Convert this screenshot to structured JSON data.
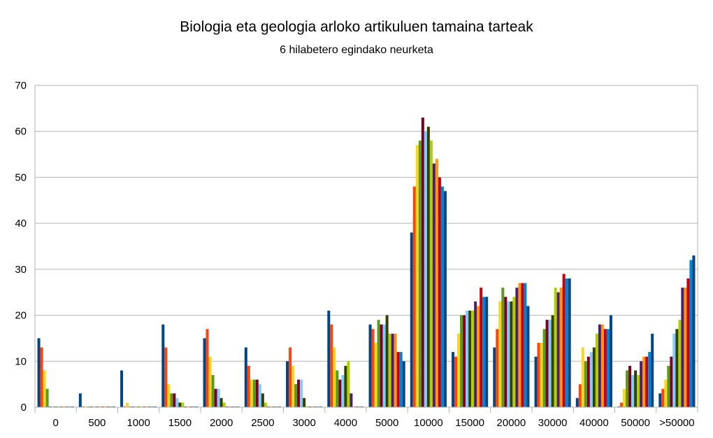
{
  "chart_data": {
    "type": "bar",
    "title": "Biologia eta geologia arloko artikuluen tamaina tarteak",
    "subtitle": "6 hilabetero egindako neurketa",
    "xlabel": "",
    "ylabel": "",
    "ylim": [
      0,
      70
    ],
    "yticks": [
      "0",
      "10",
      "20",
      "30",
      "40",
      "50",
      "60",
      "70"
    ],
    "grid": true,
    "legend": "none",
    "categories": [
      "0",
      "500",
      "1000",
      "1500",
      "2000",
      "2500",
      "3000",
      "4000",
      "5000",
      "10000",
      "15000",
      "20000",
      "30000",
      "40000",
      "50000",
      ">50000"
    ],
    "colors": [
      "#004586",
      "#ff420e",
      "#ffd320",
      "#579d1c",
      "#7e0021",
      "#83caff",
      "#314004",
      "#aecf00",
      "#4b1f6f",
      "#ff950e",
      "#c5000b",
      "#0084d1",
      "#004586"
    ],
    "values_by_category": [
      [
        15,
        13,
        8,
        4,
        0,
        0,
        0,
        0,
        0,
        0,
        0,
        0,
        0
      ],
      [
        3,
        0,
        0,
        0,
        0,
        0,
        0,
        0,
        0,
        0,
        0,
        0,
        0
      ],
      [
        8,
        0,
        1,
        0,
        0,
        0,
        0,
        0,
        0,
        0,
        0,
        0,
        0
      ],
      [
        18,
        13,
        5,
        3,
        3,
        2,
        1,
        1,
        0,
        0,
        0,
        0,
        0
      ],
      [
        15,
        17,
        11,
        7,
        4,
        4,
        2,
        1,
        0,
        0,
        0,
        0,
        0
      ],
      [
        13,
        9,
        6,
        6,
        6,
        5,
        3,
        1,
        0,
        0,
        0,
        0,
        0
      ],
      [
        10,
        13,
        9,
        5,
        6,
        6,
        2,
        0,
        0,
        0,
        0,
        0,
        0
      ],
      [
        21,
        18,
        13,
        8,
        6,
        7,
        9,
        10,
        3,
        0,
        0,
        0,
        0
      ],
      [
        18,
        17,
        14,
        19,
        18,
        18,
        20,
        16,
        16,
        16,
        12,
        12,
        10
      ],
      [
        38,
        48,
        57,
        58,
        63,
        60,
        61,
        58,
        53,
        54,
        50,
        48,
        47
      ],
      [
        12,
        11,
        16,
        20,
        20,
        21,
        21,
        21,
        23,
        22,
        26,
        24,
        24
      ],
      [
        13,
        17,
        23,
        26,
        24,
        23,
        23,
        24,
        26,
        27,
        27,
        27,
        22
      ],
      [
        11,
        14,
        14,
        17,
        19,
        19,
        20,
        26,
        25,
        26,
        29,
        28,
        28
      ],
      [
        2,
        5,
        13,
        10,
        11,
        12,
        13,
        16,
        18,
        18,
        17,
        17,
        20
      ],
      [
        0,
        1,
        4,
        8,
        9,
        7,
        8,
        7,
        10,
        11,
        11,
        12,
        16
      ],
      [
        3,
        4,
        6,
        9,
        11,
        16,
        17,
        19,
        26,
        26,
        28,
        32,
        33
      ]
    ]
  }
}
